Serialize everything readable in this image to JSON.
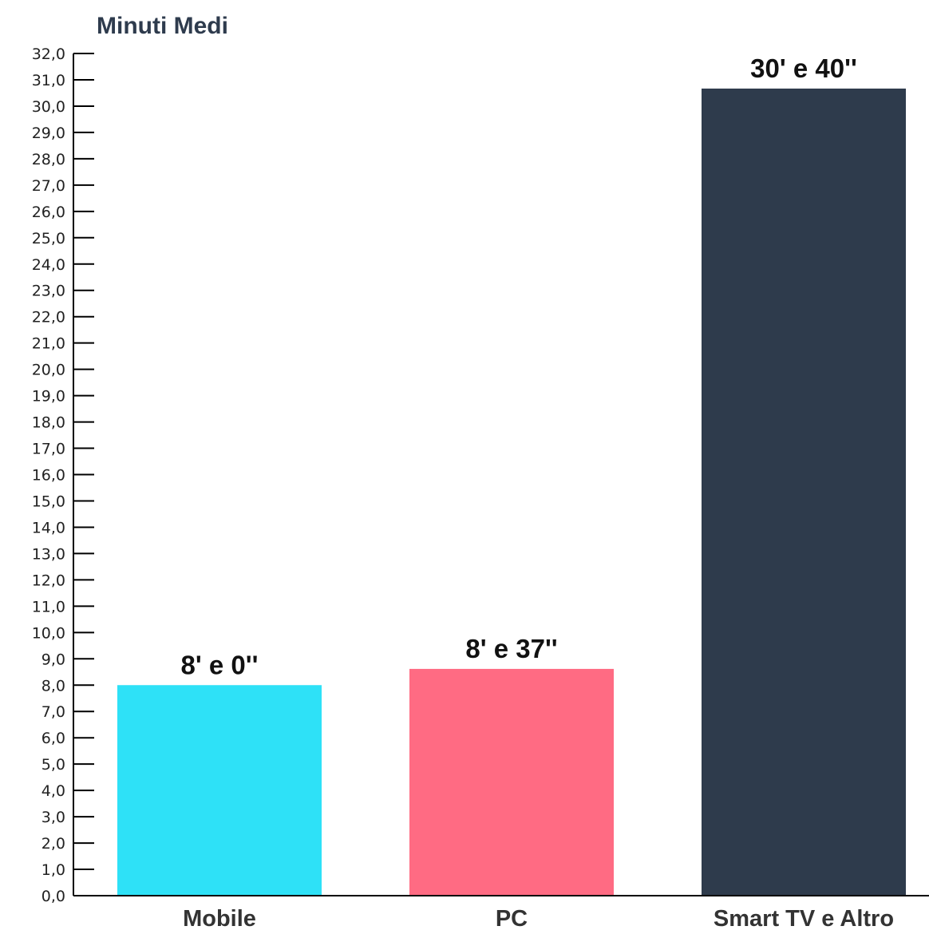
{
  "chart_data": {
    "type": "bar",
    "ylabel": "Minuti Medi",
    "categories": [
      "Mobile",
      "PC",
      "Smart TV e Altro"
    ],
    "values": [
      8.0,
      8.617,
      30.667
    ],
    "value_labels": [
      "8' e 0''",
      "8' e 37''",
      "30' e 40''"
    ],
    "colors": [
      "#2ee1f7",
      "#ff6b83",
      "#2e3b4c"
    ],
    "ylim": [
      0,
      32
    ],
    "ytick_step": 1,
    "ytick_labels": [
      "0,0",
      "1,0",
      "2,0",
      "3,0",
      "4,0",
      "5,0",
      "6,0",
      "7,0",
      "8,0",
      "9,0",
      "10,0",
      "11,0",
      "12,0",
      "13,0",
      "14,0",
      "15,0",
      "16,0",
      "17,0",
      "18,0",
      "19,0",
      "20,0",
      "21,0",
      "22,0",
      "23,0",
      "24,0",
      "25,0",
      "26,0",
      "27,0",
      "28,0",
      "29,0",
      "30,0",
      "31,0",
      "32,0"
    ],
    "grid": false,
    "legend": "none"
  }
}
